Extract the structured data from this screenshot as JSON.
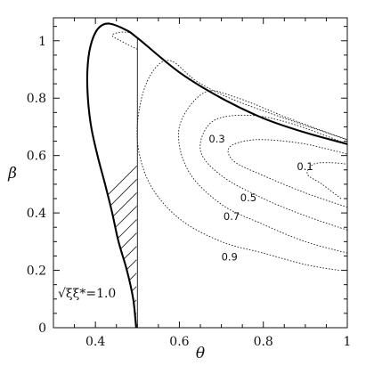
{
  "chart_data": {
    "type": "line",
    "title": "",
    "xlabel": "θ",
    "ylabel": "β",
    "xlim": [
      0.3,
      1.0
    ],
    "ylim": [
      0,
      1.08
    ],
    "x_ticks": [
      0.4,
      0.6,
      0.8,
      1.0
    ],
    "x_tick_labels": [
      "0.4",
      "0.6",
      "0.8",
      "1"
    ],
    "y_ticks": [
      0,
      0.2,
      0.4,
      0.6,
      0.8,
      1.0
    ],
    "y_tick_labels": [
      "0",
      "0.2",
      "0.4",
      "0.6",
      "0.8",
      "1"
    ],
    "grid": false,
    "legend": "none",
    "annotation": "√ξξ*=1.0",
    "boundary": {
      "label": "√ξξ*=1.0",
      "points": [
        [
          0.497,
          0.0
        ],
        [
          0.49,
          0.1
        ],
        [
          0.475,
          0.2
        ],
        [
          0.455,
          0.3
        ],
        [
          0.44,
          0.4
        ],
        [
          0.423,
          0.5
        ],
        [
          0.405,
          0.6
        ],
        [
          0.39,
          0.7
        ],
        [
          0.382,
          0.8
        ],
        [
          0.381,
          0.9
        ],
        [
          0.388,
          0.98
        ],
        [
          0.405,
          1.04
        ],
        [
          0.43,
          1.06
        ],
        [
          0.47,
          1.04
        ],
        [
          0.5,
          1.01
        ],
        [
          0.6,
          0.89
        ],
        [
          0.7,
          0.8
        ],
        [
          0.8,
          0.73
        ],
        [
          0.9,
          0.68
        ],
        [
          1.0,
          0.64
        ]
      ]
    },
    "hatched_region": {
      "theta_max": 0.5,
      "points": [
        [
          0.497,
          0.0
        ],
        [
          0.49,
          0.1
        ],
        [
          0.475,
          0.2
        ],
        [
          0.455,
          0.3
        ],
        [
          0.44,
          0.4
        ],
        [
          0.423,
          0.5
        ],
        [
          0.405,
          0.6
        ],
        [
          0.39,
          0.7
        ],
        [
          0.382,
          0.8
        ],
        [
          0.381,
          0.9
        ],
        [
          0.388,
          0.98
        ],
        [
          0.405,
          1.04
        ],
        [
          0.43,
          1.06
        ],
        [
          0.47,
          1.04
        ],
        [
          0.5,
          1.01
        ]
      ]
    },
    "contours": [
      {
        "label": "0.1",
        "label_at": [
          0.88,
          0.55
        ],
        "points": [
          [
            0.985,
            0.45
          ],
          [
            0.94,
            0.5
          ],
          [
            0.905,
            0.535
          ],
          [
            0.92,
            0.57
          ],
          [
            0.96,
            0.575
          ],
          [
            1.0,
            0.57
          ]
        ]
      },
      {
        "label": "0.3",
        "label_at": [
          0.67,
          0.645
        ],
        "points": [
          [
            1.0,
            0.42
          ],
          [
            0.9,
            0.47
          ],
          [
            0.8,
            0.53
          ],
          [
            0.73,
            0.58
          ],
          [
            0.72,
            0.63
          ],
          [
            0.78,
            0.655
          ],
          [
            0.88,
            0.645
          ],
          [
            0.96,
            0.62
          ],
          [
            1.0,
            0.605
          ]
        ]
      },
      {
        "label": "0.5",
        "label_at": [
          0.745,
          0.44
        ],
        "points": [
          [
            1.0,
            0.34
          ],
          [
            0.9,
            0.39
          ],
          [
            0.8,
            0.45
          ],
          [
            0.7,
            0.53
          ],
          [
            0.65,
            0.62
          ],
          [
            0.68,
            0.72
          ],
          [
            0.77,
            0.74
          ],
          [
            0.87,
            0.71
          ],
          [
            1.0,
            0.64
          ]
        ]
      },
      {
        "label": "0.7",
        "label_at": [
          0.705,
          0.375
        ],
        "points": [
          [
            1.0,
            0.26
          ],
          [
            0.9,
            0.3
          ],
          [
            0.8,
            0.36
          ],
          [
            0.7,
            0.43
          ],
          [
            0.62,
            0.55
          ],
          [
            0.6,
            0.7
          ],
          [
            0.66,
            0.82
          ],
          [
            0.74,
            0.8
          ],
          [
            0.86,
            0.73
          ],
          [
            1.0,
            0.655
          ]
        ]
      },
      {
        "label": "0.9",
        "label_at": [
          0.7,
          0.235
        ],
        "points": [
          [
            0.98,
            0.2
          ],
          [
            0.9,
            0.22
          ],
          [
            0.8,
            0.26
          ],
          [
            0.7,
            0.3
          ],
          [
            0.6,
            0.38
          ],
          [
            0.53,
            0.5
          ],
          [
            0.5,
            0.65
          ],
          [
            0.51,
            0.8
          ],
          [
            0.54,
            0.9
          ],
          [
            0.58,
            0.93
          ],
          [
            0.64,
            0.86
          ],
          [
            0.72,
            0.8
          ],
          [
            0.85,
            0.73
          ],
          [
            1.0,
            0.655
          ]
        ]
      },
      {
        "label": "",
        "label_at": null,
        "points": [
          [
            0.5,
            0.97
          ],
          [
            0.46,
            1.0
          ],
          [
            0.44,
            1.02
          ],
          [
            0.47,
            1.03
          ],
          [
            0.5,
            1.01
          ],
          [
            0.6,
            0.89
          ],
          [
            0.7,
            0.8
          ],
          [
            0.8,
            0.73
          ],
          [
            0.9,
            0.68
          ],
          [
            1.0,
            0.64
          ]
        ]
      }
    ]
  }
}
